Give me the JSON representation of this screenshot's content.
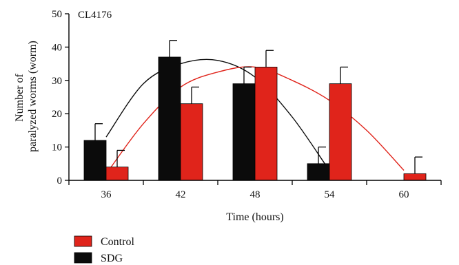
{
  "chart_data": {
    "type": "bar",
    "annotation": "CL4176",
    "xlabel": "Time (hours)",
    "ylabel_lines": [
      "Number of",
      "paralyzed worms (worm)"
    ],
    "categories": [
      "36",
      "42",
      "48",
      "54",
      "60"
    ],
    "ylim": [
      0,
      50
    ],
    "yticks": [
      0,
      10,
      20,
      30,
      40,
      50
    ],
    "series": [
      {
        "name": "SDG",
        "color": "#0b0b0b",
        "values": [
          12,
          37,
          29,
          5,
          0
        ],
        "errors": [
          5,
          5,
          5,
          5,
          0
        ]
      },
      {
        "name": "Control",
        "color": "#e0241b",
        "values": [
          4,
          23,
          34,
          29,
          2
        ],
        "errors": [
          5,
          5,
          5,
          5,
          5
        ]
      }
    ],
    "trend_lines": [
      {
        "series": "SDG",
        "color": "#0b0b0b",
        "points": [
          [
            36,
            13
          ],
          [
            39,
            29
          ],
          [
            42,
            35
          ],
          [
            45,
            36
          ],
          [
            48,
            31
          ],
          [
            51,
            19
          ],
          [
            54,
            3
          ],
          [
            54.7,
            0
          ]
        ]
      },
      {
        "series": "Control",
        "color": "#e0241b",
        "points": [
          [
            36.3,
            3.5
          ],
          [
            39,
            17
          ],
          [
            42,
            28
          ],
          [
            45,
            32.5
          ],
          [
            48,
            34
          ],
          [
            51,
            30
          ],
          [
            54,
            24
          ],
          [
            57,
            15
          ],
          [
            60,
            3
          ]
        ]
      }
    ],
    "legend": {
      "position": "bottom-left",
      "order": [
        "Control",
        "SDG"
      ]
    },
    "grid": false
  }
}
